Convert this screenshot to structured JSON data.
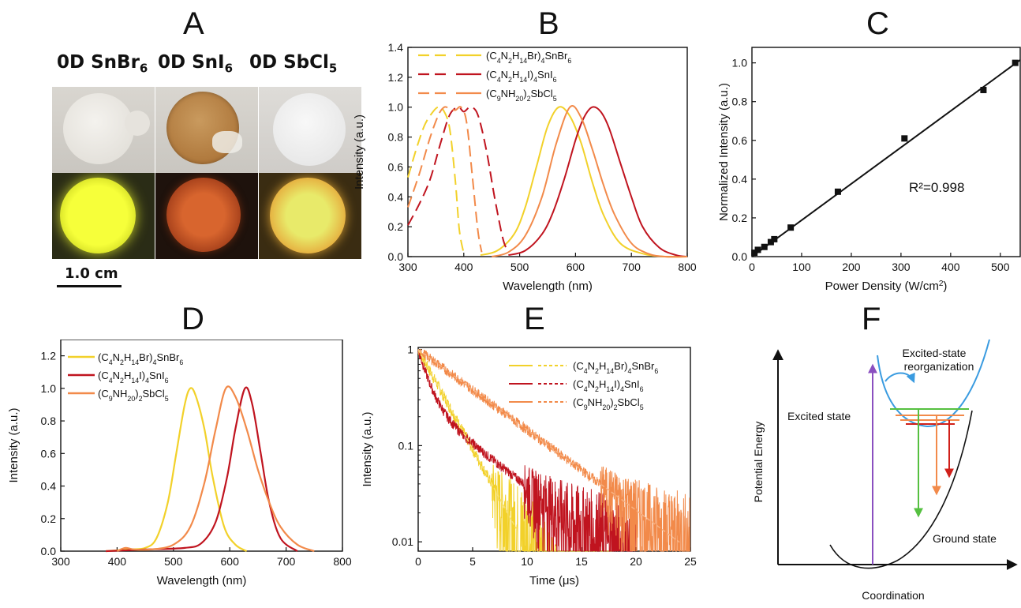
{
  "panels": {
    "A": {
      "letter": "A",
      "labels": [
        "0D SnBr",
        "0D SnI",
        "0D SbCl"
      ],
      "subs": [
        "6",
        "6",
        "5"
      ],
      "scalebar": "1.0 cm"
    },
    "B": {
      "letter": "B",
      "xlabel": "Wavelength (nm)",
      "ylabel": "Intensity (a.u.)",
      "legend": [
        "(C4N2H14Br)4SnBr6",
        "(C4N2H14I)4SnI6",
        "(C9NH20)2SbCl5"
      ]
    },
    "C": {
      "letter": "C",
      "xlabel": "Power Density (W/cm²)",
      "ylabel": "Normalized Intensity (a.u.)",
      "annotation": "R²=0.998"
    },
    "D": {
      "letter": "D",
      "xlabel": "Wavelength (nm)",
      "ylabel": "Intensity (a.u.)",
      "legend": [
        "(C4N2H14Br)4SnBr6",
        "(C4N2H14I)4SnI6",
        "(C9NH20)2SbCl5"
      ]
    },
    "E": {
      "letter": "E",
      "xlabel": "Time (μs)",
      "ylabel": "Intensity (a.u.)",
      "legend": [
        "(C4N2H14Br)4SnBr6",
        "(C4N2H14I)4SnI6",
        "(C9NH20)2SbCl5"
      ]
    },
    "F": {
      "letter": "F",
      "xlabel": "Coordination",
      "ylabel": "Potential Energy",
      "label_excited": "Excited state",
      "label_reorg_1": "Excited-state",
      "label_reorg_2": "reorganization",
      "label_ground": "Ground state"
    }
  },
  "colors": {
    "snbr": "#f2d12a",
    "sni": "#c0141f",
    "sbcl": "#f28a4a",
    "blue": "#3a9be0",
    "green": "#55c040",
    "purple": "#8a4fc0"
  },
  "chart_data": [
    {
      "panel": "B",
      "type": "line",
      "xlabel": "Wavelength (nm)",
      "ylabel": "Intensity (a.u.)",
      "xlim": [
        300,
        800
      ],
      "ylim": [
        0,
        1.4
      ],
      "xticks": [
        300,
        400,
        500,
        600,
        700,
        800
      ],
      "yticks": [
        0.0,
        0.2,
        0.4,
        0.6,
        0.8,
        1.0,
        1.2,
        1.4
      ],
      "series": [
        {
          "name": "(C4N2H14Br)4SnBr6",
          "kind": "excitation",
          "style": "dashed",
          "color": "#f2d12a",
          "x": [
            300,
            315,
            330,
            345,
            355,
            365,
            375,
            385,
            392,
            400
          ],
          "y": [
            0.53,
            0.72,
            0.88,
            0.97,
            1.0,
            0.97,
            0.85,
            0.5,
            0.18,
            0.02
          ]
        },
        {
          "name": "(C4N2H14Br)4SnBr6",
          "kind": "emission",
          "style": "solid",
          "color": "#f2d12a",
          "x": [
            430,
            460,
            490,
            510,
            530,
            550,
            570,
            590,
            610,
            630,
            650,
            680,
            720,
            760,
            800
          ],
          "y": [
            0.01,
            0.04,
            0.15,
            0.33,
            0.6,
            0.87,
            1.0,
            0.94,
            0.76,
            0.5,
            0.28,
            0.09,
            0.02,
            0.0,
            0.0
          ]
        },
        {
          "name": "(C4N2H14I)4SnI6",
          "kind": "excitation",
          "style": "dashed",
          "color": "#c0141f",
          "x": [
            300,
            320,
            340,
            360,
            375,
            390,
            400,
            412,
            425,
            440,
            455,
            470,
            480
          ],
          "y": [
            0.21,
            0.35,
            0.52,
            0.78,
            0.95,
            1.0,
            0.97,
            1.0,
            0.95,
            0.72,
            0.4,
            0.12,
            0.03
          ]
        },
        {
          "name": "(C4N2H14I)4SnI6",
          "kind": "emission",
          "style": "solid",
          "color": "#c0141f",
          "x": [
            480,
            510,
            540,
            560,
            580,
            600,
            615,
            630,
            645,
            660,
            680,
            700,
            720,
            750,
            780,
            800
          ],
          "y": [
            0.01,
            0.04,
            0.15,
            0.3,
            0.52,
            0.78,
            0.93,
            1.0,
            0.97,
            0.86,
            0.63,
            0.4,
            0.2,
            0.06,
            0.01,
            0.0
          ]
        },
        {
          "name": "(C9NH20)2SbCl5",
          "kind": "excitation",
          "style": "dashed",
          "color": "#f28a4a",
          "x": [
            300,
            320,
            340,
            355,
            365,
            375,
            385,
            395,
            405,
            415,
            425,
            432
          ],
          "y": [
            0.33,
            0.55,
            0.8,
            0.95,
            1.0,
            0.99,
            0.98,
            1.0,
            0.9,
            0.55,
            0.18,
            0.03
          ]
        },
        {
          "name": "(C9NH20)2SbCl5",
          "kind": "emission",
          "style": "solid",
          "color": "#f28a4a",
          "x": [
            450,
            480,
            510,
            540,
            565,
            590,
            610,
            630,
            650,
            670,
            700,
            730,
            760,
            800
          ],
          "y": [
            0.0,
            0.03,
            0.14,
            0.4,
            0.75,
            1.0,
            0.93,
            0.72,
            0.48,
            0.28,
            0.09,
            0.02,
            0.0,
            0.0
          ]
        }
      ]
    },
    {
      "panel": "C",
      "type": "scatter",
      "xlabel": "Power Density (W/cm²)",
      "ylabel": "Normalized Intensity (a.u.)",
      "xlim": [
        0,
        540
      ],
      "ylim": [
        0,
        1.08
      ],
      "xticks": [
        0,
        100,
        200,
        300,
        400,
        500
      ],
      "yticks": [
        0.0,
        0.2,
        0.4,
        0.6,
        0.8,
        1.0
      ],
      "points": {
        "x": [
          5,
          12,
          25,
          38,
          45,
          78,
          173,
          307,
          466,
          530
        ],
        "y": [
          0.02,
          0.035,
          0.05,
          0.075,
          0.09,
          0.15,
          0.335,
          0.61,
          0.86,
          1.0
        ]
      },
      "fit": {
        "x": [
          0,
          540
        ],
        "y": [
          0.0,
          1.015
        ]
      },
      "annotation": "R²=0.998"
    },
    {
      "panel": "D",
      "type": "line",
      "xlabel": "Wavelength (nm)",
      "ylabel": "Intensity (a.u.)",
      "xlim": [
        300,
        800
      ],
      "ylim": [
        0,
        1.3
      ],
      "xticks": [
        300,
        400,
        500,
        600,
        700,
        800
      ],
      "yticks": [
        0.0,
        0.2,
        0.4,
        0.6,
        0.8,
        1.0,
        1.2
      ],
      "series": [
        {
          "name": "(C4N2H14Br)4SnBr6",
          "color": "#f2d12a",
          "x": [
            380,
            420,
            450,
            470,
            490,
            505,
            520,
            530,
            540,
            555,
            570,
            590,
            610,
            630
          ],
          "y": [
            0.0,
            0.01,
            0.02,
            0.08,
            0.3,
            0.6,
            0.9,
            1.0,
            0.95,
            0.75,
            0.45,
            0.15,
            0.04,
            0.0
          ]
        },
        {
          "name": "(C4N2H14I)4SnI6",
          "color": "#c0141f",
          "x": [
            380,
            450,
            520,
            550,
            575,
            595,
            610,
            627,
            640,
            655,
            670,
            690,
            720
          ],
          "y": [
            0.0,
            0.01,
            0.02,
            0.05,
            0.18,
            0.45,
            0.75,
            1.0,
            0.9,
            0.6,
            0.3,
            0.08,
            0.0
          ]
        },
        {
          "name": "(C9NH20)2SbCl5",
          "color": "#f28a4a",
          "x": [
            400,
            415,
            430,
            460,
            500,
            530,
            555,
            575,
            593,
            610,
            630,
            650,
            670,
            690,
            720,
            750
          ],
          "y": [
            0.0,
            0.02,
            0.01,
            0.01,
            0.04,
            0.15,
            0.42,
            0.75,
            1.0,
            0.95,
            0.75,
            0.5,
            0.3,
            0.15,
            0.04,
            0.0
          ]
        }
      ]
    },
    {
      "panel": "E",
      "type": "line",
      "xlabel": "Time (μs)",
      "ylabel": "Intensity (a.u.)",
      "yscale": "log",
      "xlim": [
        0,
        25
      ],
      "ylim": [
        0.008,
        1.05
      ],
      "xticks": [
        0,
        5,
        10,
        15,
        20,
        25
      ],
      "yticks": [
        0.01,
        0.1,
        1
      ],
      "series": [
        {
          "name": "(C4N2H14Br)4SnBr6",
          "color": "#f2d12a",
          "tau_us": 2.1,
          "noise_floor": 0.009
        },
        {
          "name": "(C4N2H14I)4SnI6",
          "color": "#c0141f",
          "fast_tau_us": 0.9,
          "slow_tau_us": 5.0,
          "noise_floor": 0.009
        },
        {
          "name": "(C9NH20)2SbCl5",
          "color": "#f28a4a",
          "tau_us": 5.2,
          "noise_floor": 0.009
        }
      ]
    }
  ]
}
